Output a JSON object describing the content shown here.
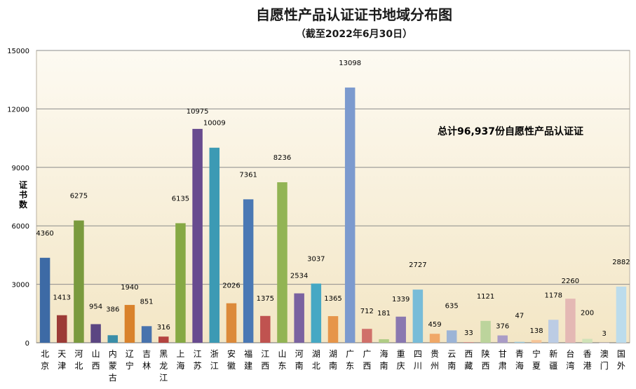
{
  "chart_data": {
    "type": "bar",
    "title": "自愿性产品认证证书地域分布图",
    "subtitle": "（截至2022年6月30日）",
    "ylabel": "证书数",
    "ylim": [
      0,
      15000
    ],
    "yticks": [
      0,
      3000,
      6000,
      9000,
      12000,
      15000
    ],
    "annotation": "总计96,937份自愿性产品认证证",
    "grid": true,
    "categories": [
      "北京",
      "天津",
      "河北",
      "山西",
      "内蒙古",
      "辽宁",
      "吉林",
      "黑龙江",
      "上海",
      "江苏",
      "浙江",
      "安徽",
      "福建",
      "江西",
      "山东",
      "河南",
      "湖北",
      "湖南",
      "广东",
      "广西",
      "海南",
      "重庆",
      "四川",
      "贵州",
      "云南",
      "西藏",
      "陕西",
      "甘肃",
      "青海",
      "宁夏",
      "新疆",
      "台湾",
      "香港",
      "澳门",
      "国外"
    ],
    "values": [
      4360,
      1413,
      6275,
      954,
      386,
      1940,
      851,
      316,
      6135,
      10975,
      10009,
      2026,
      7361,
      1375,
      8236,
      2534,
      3037,
      1365,
      13098,
      712,
      181,
      1339,
      2727,
      459,
      635,
      33,
      1121,
      376,
      47,
      138,
      1178,
      2260,
      200,
      3,
      2882
    ],
    "colors": [
      "#3d6aa5",
      "#9c3b36",
      "#7a9a3e",
      "#5b4682",
      "#3a8ea8",
      "#d9822b",
      "#4873ad",
      "#b44440",
      "#86a944",
      "#684b8f",
      "#3c9ab4",
      "#dc8a3a",
      "#4a78b4",
      "#c05350",
      "#92b454",
      "#7a62a0",
      "#46a8c4",
      "#e6954a",
      "#7c9ace",
      "#d0706a",
      "#b0cd86",
      "#8a78b0",
      "#78bcd8",
      "#f0a868",
      "#9cb4d6",
      "#d48c86",
      "#bcd49c",
      "#aa9cc6",
      "#9ccce0",
      "#f6c498",
      "#bccce4",
      "#e4b8b4",
      "#d0e2b8",
      "#c8bcdc",
      "#bcdcec"
    ]
  }
}
